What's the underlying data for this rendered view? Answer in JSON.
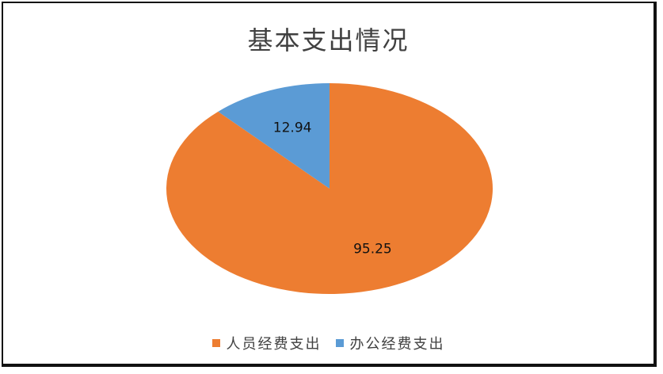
{
  "chart_data": {
    "type": "pie",
    "title": "基本支出情况",
    "series": [
      {
        "name": "人员经费支出",
        "value": 95.25,
        "label": "95.25",
        "color": "#ED7D31"
      },
      {
        "name": "办公经费支出",
        "value": 12.94,
        "label": "12.94",
        "color": "#5B9BD5"
      }
    ],
    "start_angle_deg": 0,
    "direction": "clockwise",
    "legend_position": "bottom"
  }
}
